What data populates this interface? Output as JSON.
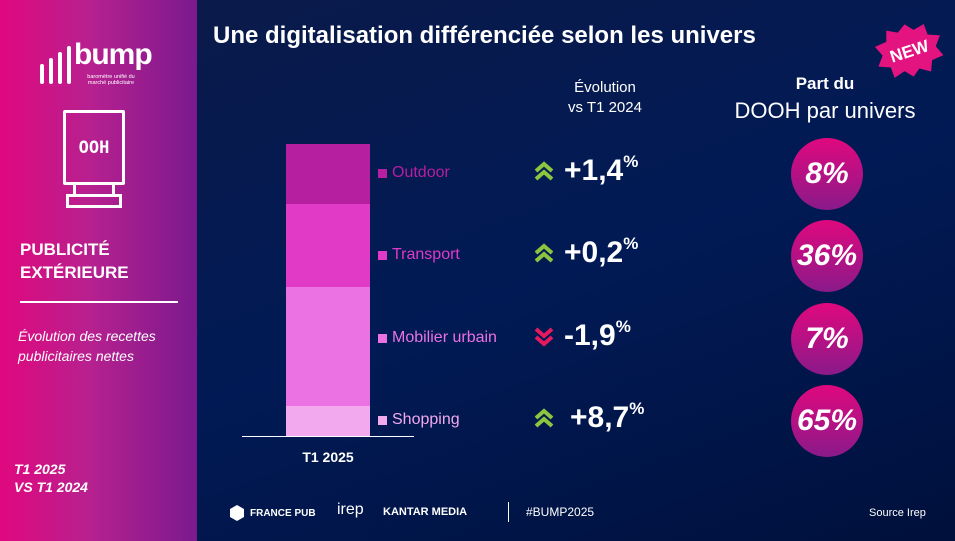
{
  "sidebar": {
    "logo": "bump",
    "logo_sub": "baromètre unifié du marché publicitaire",
    "ooh_label": "OOH",
    "heading_line1": "PUBLICITÉ",
    "heading_line2": "EXTÉRIEURE",
    "subtitle": "Évolution des recettes publicitaires nettes",
    "period_line1": "T1 2025",
    "period_line2": "VS T1 2024"
  },
  "header": {
    "title": "Une digitalisation différenciée selon les univers",
    "badge": "NEW",
    "evolution_label_line1": "Évolution",
    "evolution_label_line2": "vs T1 2024",
    "share_label_line1": "Part du",
    "share_label_line2": "DOOH par univers"
  },
  "chart_data": {
    "type": "bar",
    "stacked": true,
    "categories": [
      "T1 2025"
    ],
    "series": [
      {
        "name": "Outdoor",
        "share_pct": 20.5,
        "color": "#b51fa0",
        "evolution": "+1,4",
        "trend": "up",
        "dooh_share": "8%"
      },
      {
        "name": "Transport",
        "share_pct": 28.4,
        "color": "#e03ac6",
        "evolution": "+0,2",
        "trend": "up",
        "dooh_share": "36%"
      },
      {
        "name": "Mobilier urbain",
        "share_pct": 40.8,
        "color": "#ea72e2",
        "evolution": "-1,9",
        "trend": "down",
        "dooh_share": "7%"
      },
      {
        "name": "Shopping",
        "share_pct": 10.3,
        "color": "#f3a9ee",
        "evolution": "+8,7",
        "trend": "up",
        "dooh_share": "65%"
      }
    ]
  },
  "colors": {
    "up": "#8cc63f",
    "down": "#e5195e"
  },
  "footer": {
    "partner1": "FRANCE PUB",
    "partner2": "irep",
    "partner3": "KANTAR MEDIA",
    "hashtag": "#BUMP2025",
    "source": "Source Irep"
  }
}
